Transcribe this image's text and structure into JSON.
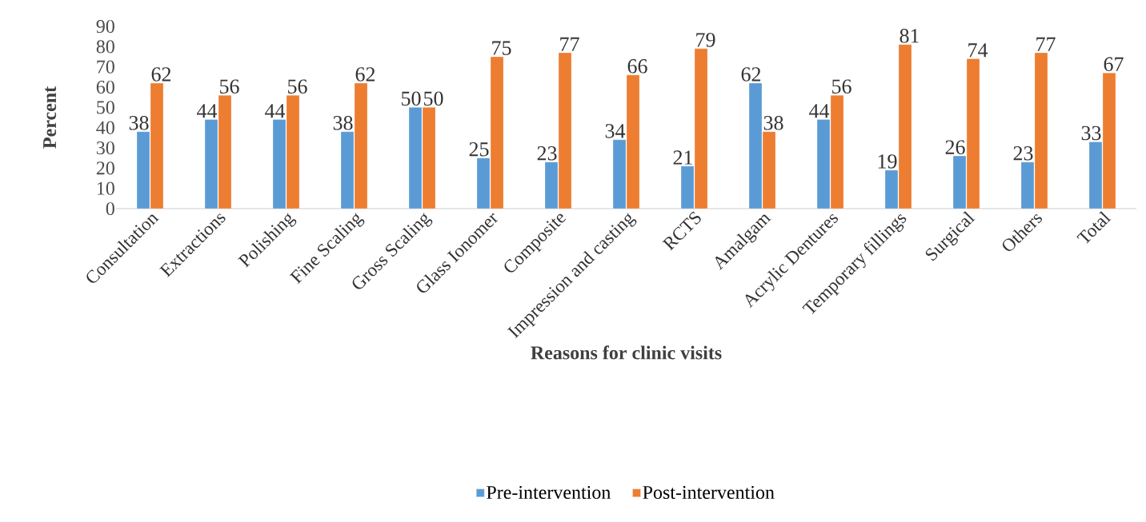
{
  "chart_data": {
    "type": "bar",
    "xlabel": "Reasons for clinic visits",
    "ylabel": "Percent",
    "categories": [
      "Consultation",
      "Extractions",
      "Polishing",
      "Fine Scaling",
      "Gross Scaling",
      "Glass Ionomer",
      "Composite",
      "Impression and casting",
      "RCTS",
      "Amalgam",
      "Acrylic Dentures",
      "Temporary fillings",
      "Surgical",
      "Others",
      "Total"
    ],
    "series": [
      {
        "name": "Pre-intervention",
        "color": "#5b9bd5",
        "values": [
          38,
          44,
          44,
          38,
          50,
          25,
          23,
          34,
          21,
          62,
          44,
          19,
          26,
          23,
          33
        ]
      },
      {
        "name": "Post-intervention",
        "color": "#ed7d31",
        "values": [
          62,
          56,
          56,
          62,
          50,
          75,
          77,
          66,
          79,
          38,
          56,
          81,
          74,
          77,
          67
        ]
      }
    ],
    "ylim": [
      0,
      90
    ],
    "yticks": [
      0,
      10,
      20,
      30,
      40,
      50,
      60,
      70,
      80,
      90
    ],
    "data_labels": true,
    "legend": "bottom"
  }
}
